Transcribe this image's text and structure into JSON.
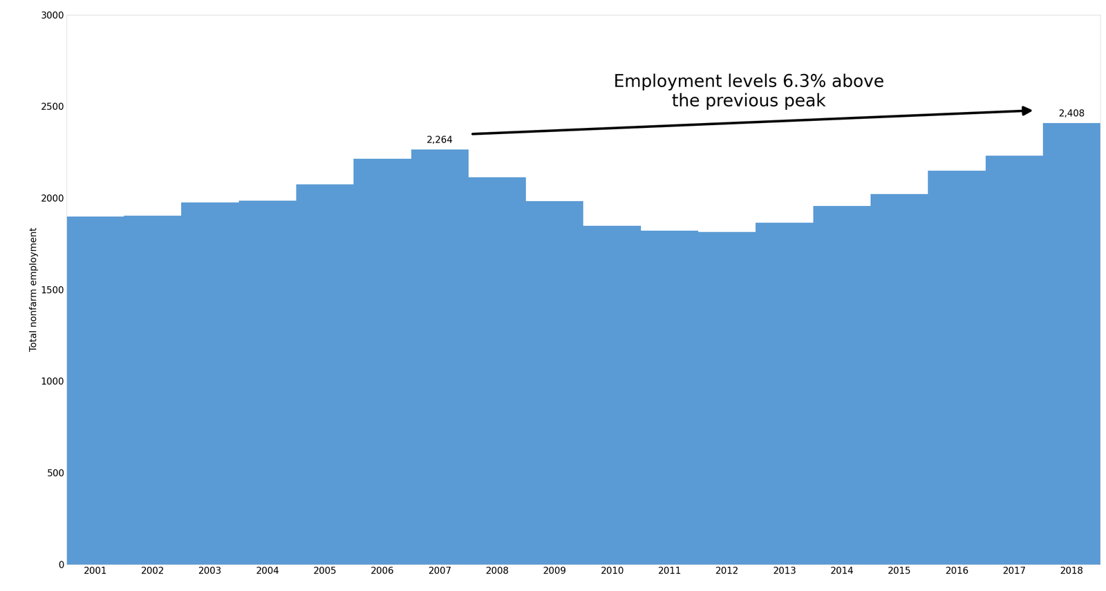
{
  "chart_data": {
    "type": "bar",
    "y_label": "Total nonfarm employment",
    "annotation": "Employment levels 6.3% above\nthe previous peak",
    "categories": [
      "2001",
      "2002",
      "2003",
      "2004",
      "2005",
      "2006",
      "2007",
      "2008",
      "2009",
      "2010",
      "2011",
      "2012",
      "2013",
      "2014",
      "2015",
      "2016",
      "2017",
      "2018"
    ],
    "values": [
      1899,
      1904,
      1975,
      1985,
      2075,
      2213,
      2264,
      2113,
      1983,
      1849,
      1822,
      1814,
      1864,
      1956,
      2021,
      2148,
      2232,
      2408
    ],
    "value_labels": [
      null,
      null,
      null,
      null,
      null,
      null,
      "2,264",
      null,
      null,
      null,
      null,
      null,
      null,
      null,
      null,
      null,
      null,
      "2,408"
    ],
    "data_labels": true,
    "color": "#5b9bd5",
    "ylim": [
      0,
      3000
    ],
    "yticks": [
      0,
      500,
      1000,
      1500,
      2000,
      2500,
      3000
    ],
    "grid": false
  }
}
